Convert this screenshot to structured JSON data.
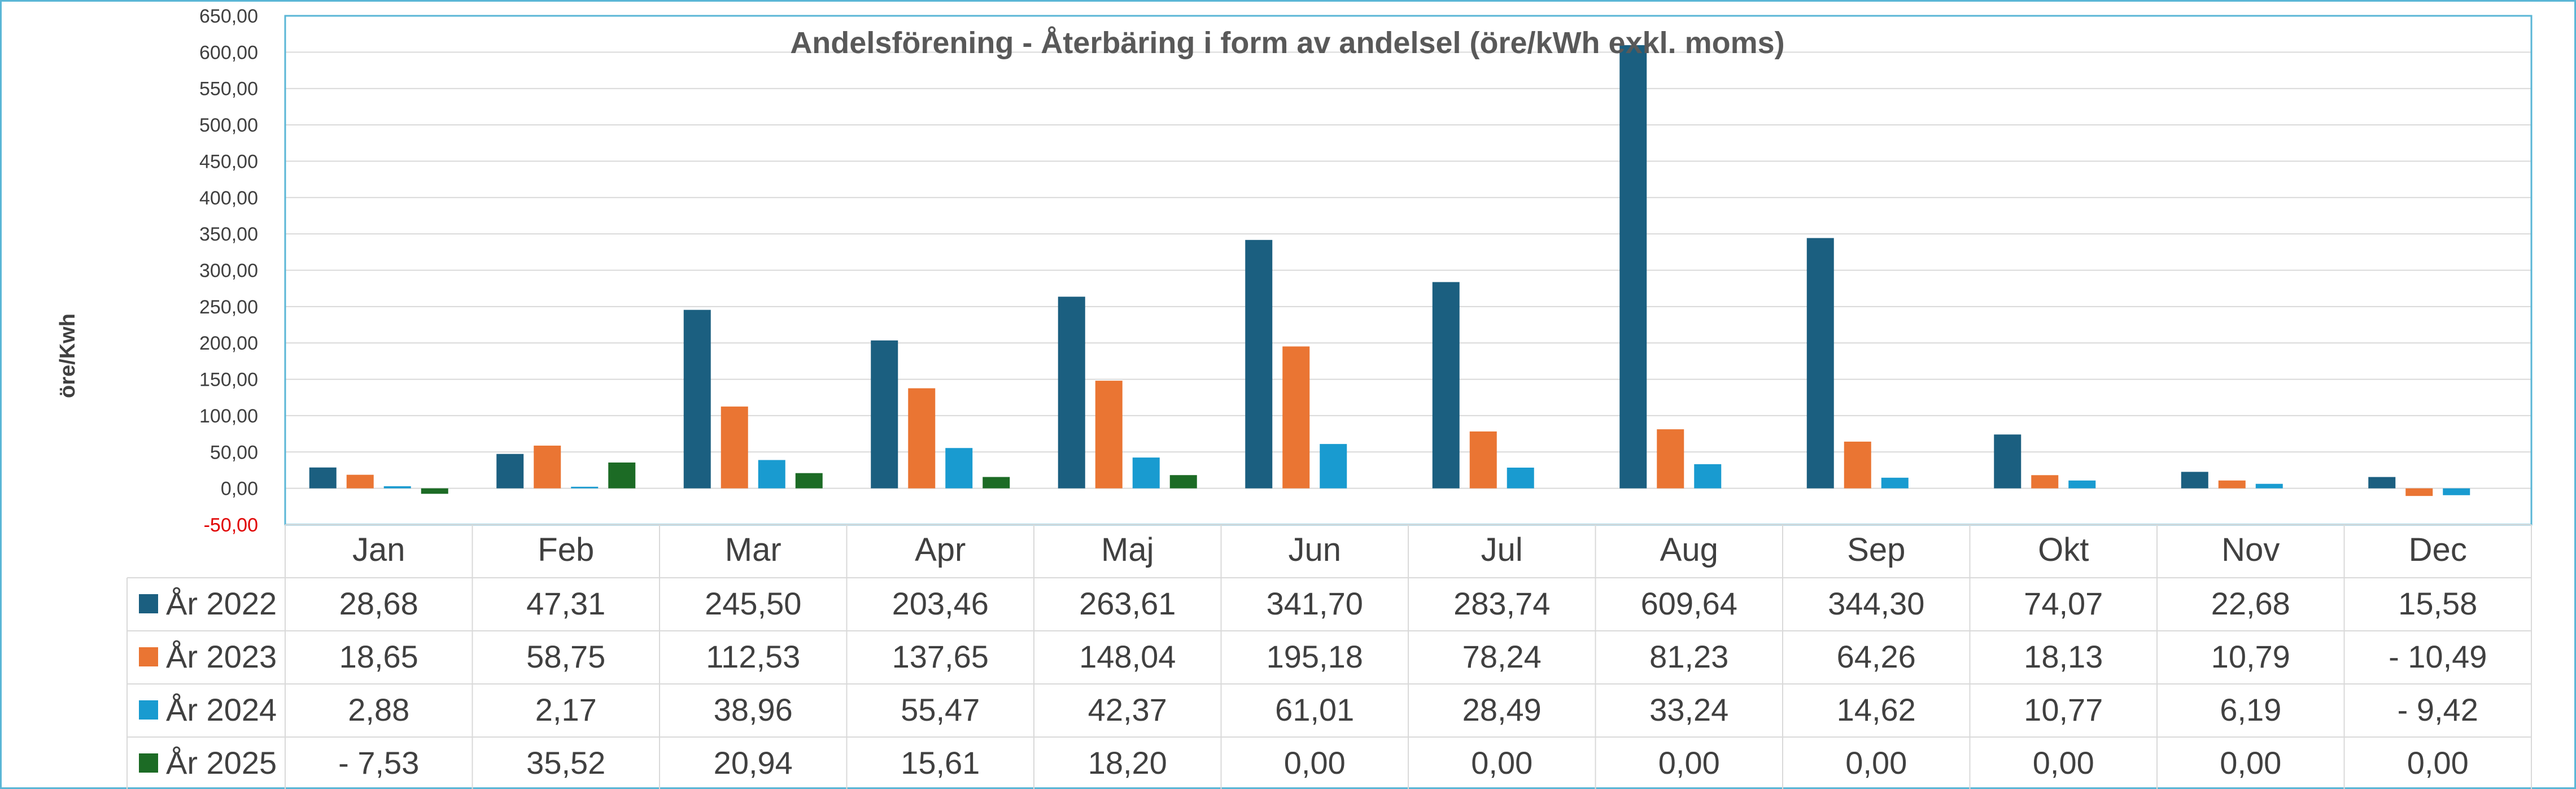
{
  "chart_data": {
    "type": "bar",
    "title": "Andelsförening - Återbäring i form av andelsel (öre/kWh exkl. moms)",
    "ylabel": "öre/Kwh",
    "xlabel": "",
    "ylim": [
      -50,
      650
    ],
    "yticks": [
      "650,00",
      "600,00",
      "550,00",
      "500,00",
      "450,00",
      "400,00",
      "350,00",
      "300,00",
      "250,00",
      "200,00",
      "150,00",
      "100,00",
      "50,00",
      "0,00",
      "-50,00"
    ],
    "ytick_values": [
      650,
      600,
      550,
      500,
      450,
      400,
      350,
      300,
      250,
      200,
      150,
      100,
      50,
      0,
      -50
    ],
    "grid": true,
    "legend": "data-table",
    "categories": [
      "Jan",
      "Feb",
      "Mar",
      "Apr",
      "Maj",
      "Jun",
      "Jul",
      "Aug",
      "Sep",
      "Okt",
      "Nov",
      "Dec"
    ],
    "series": [
      {
        "name": "År 2022",
        "color": "#1b5f80",
        "values": [
          28.68,
          47.31,
          245.5,
          203.46,
          263.61,
          341.7,
          283.74,
          609.64,
          344.3,
          74.07,
          22.68,
          15.58
        ],
        "labels": [
          "28,68",
          "47,31",
          "245,50",
          "203,46",
          "263,61",
          "341,70",
          "283,74",
          "609,64",
          "344,30",
          "74,07",
          "22,68",
          "15,58"
        ]
      },
      {
        "name": "År 2023",
        "color": "#ea7533",
        "values": [
          18.65,
          58.75,
          112.53,
          137.65,
          148.04,
          195.18,
          78.24,
          81.23,
          64.26,
          18.13,
          10.79,
          -10.49
        ],
        "labels": [
          "18,65",
          "58,75",
          "112,53",
          "137,65",
          "148,04",
          "195,18",
          "78,24",
          "81,23",
          "64,26",
          "18,13",
          "10,79",
          "- 10,49"
        ]
      },
      {
        "name": "År 2024",
        "color": "#199bd0",
        "values": [
          2.88,
          2.17,
          38.96,
          55.47,
          42.37,
          61.01,
          28.49,
          33.24,
          14.62,
          10.77,
          6.19,
          -9.42
        ],
        "labels": [
          "2,88",
          "2,17",
          "38,96",
          "55,47",
          "42,37",
          "61,01",
          "28,49",
          "33,24",
          "14,62",
          "10,77",
          "6,19",
          "- 9,42"
        ]
      },
      {
        "name": "År 2025",
        "color": "#1c6b25",
        "values": [
          -7.53,
          35.52,
          20.94,
          15.61,
          18.2,
          0,
          0,
          0,
          0,
          0,
          0,
          0
        ],
        "labels": [
          "- 7,53",
          "35,52",
          "20,94",
          "15,61",
          "18,20",
          "0,00",
          "0,00",
          "0,00",
          "0,00",
          "0,00",
          "0,00",
          "0,00"
        ]
      }
    ]
  }
}
